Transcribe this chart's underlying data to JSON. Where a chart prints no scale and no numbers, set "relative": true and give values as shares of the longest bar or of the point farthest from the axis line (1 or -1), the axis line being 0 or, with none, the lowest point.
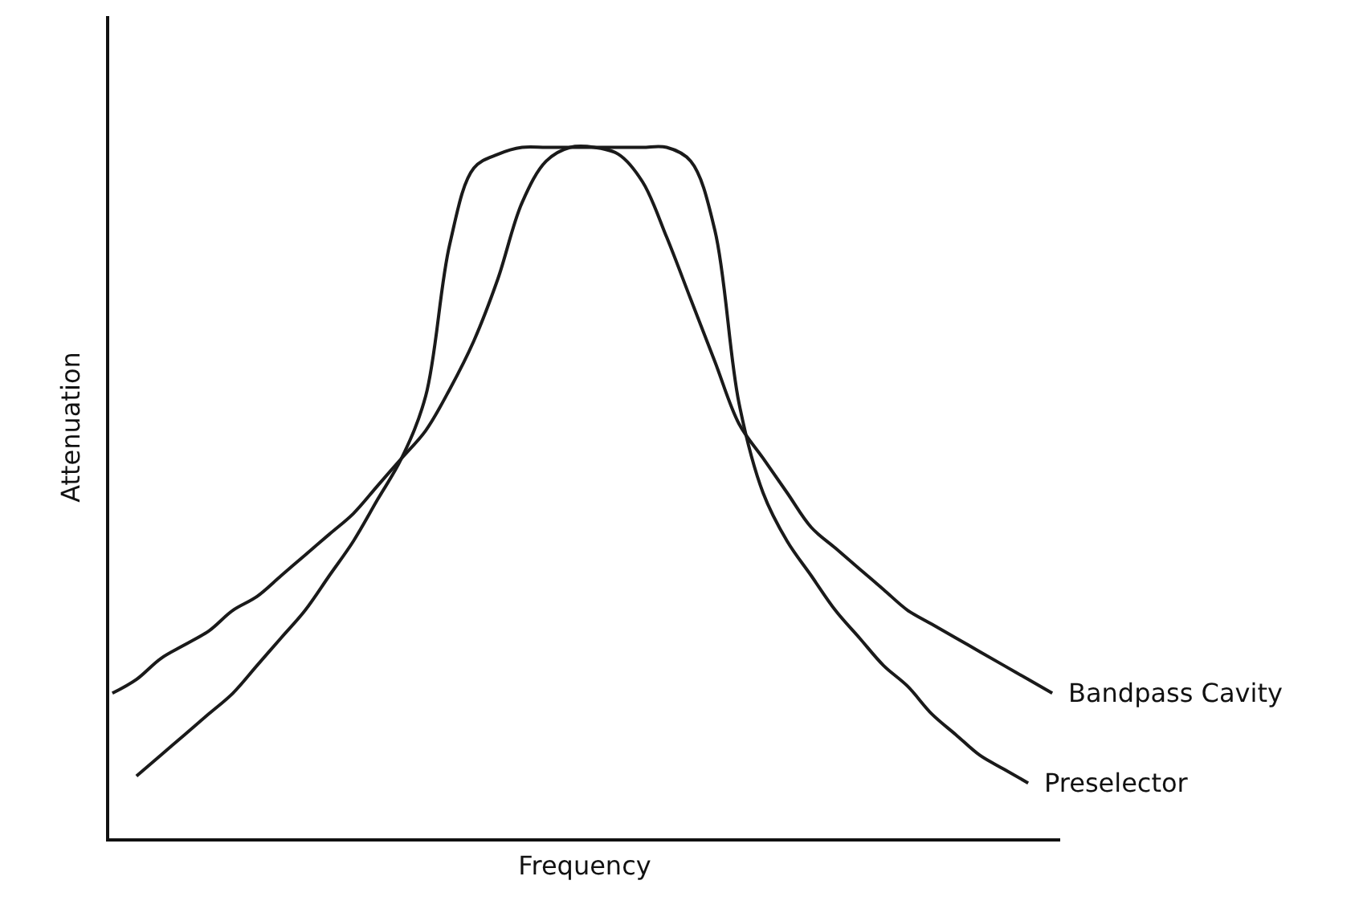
{
  "chart_data": {
    "type": "line",
    "relative": true,
    "xlabel": "Frequency",
    "ylabel": "Attenuation",
    "legend": false,
    "marker": "none",
    "line_style": "solid",
    "categories": [
      null,
      null,
      null,
      null,
      null,
      null,
      null,
      null,
      null,
      null,
      null,
      null,
      null,
      null,
      null,
      null,
      null,
      null,
      null,
      null,
      null,
      null,
      null,
      null,
      null,
      null,
      null,
      null,
      null,
      null,
      null,
      null,
      null,
      null,
      null,
      null,
      null,
      null,
      null,
      null
    ],
    "series": [
      {
        "name": "Bandpass Cavity",
        "color": "#1a1a1a",
        "values": [
          0.21,
          0.23,
          0.26,
          0.28,
          0.3,
          0.33,
          0.35,
          0.38,
          0.41,
          0.44,
          0.47,
          0.51,
          0.55,
          0.59,
          0.65,
          0.72,
          0.81,
          0.92,
          0.98,
          1,
          1,
          0.99,
          0.95,
          0.87,
          0.78,
          0.69,
          0.6,
          0.55,
          0.5,
          0.45,
          0.42,
          0.39,
          0.36,
          0.33,
          0.31,
          0.29,
          0.27,
          0.25,
          0.23,
          0.21
        ]
      },
      {
        "name": "Preselector",
        "color": "#1a1a1a",
        "values": [
          null,
          0.09,
          0.12,
          0.15,
          0.18,
          0.21,
          0.25,
          0.29,
          0.33,
          0.38,
          0.43,
          0.49,
          0.55,
          0.64,
          0.86,
          0.97,
          0.99,
          1,
          1,
          1,
          1,
          1,
          1,
          1,
          0.98,
          0.88,
          0.63,
          0.5,
          0.43,
          0.38,
          0.33,
          0.29,
          0.25,
          0.22,
          0.18,
          0.15,
          0.12,
          0.1,
          0.08,
          null
        ]
      }
    ]
  }
}
